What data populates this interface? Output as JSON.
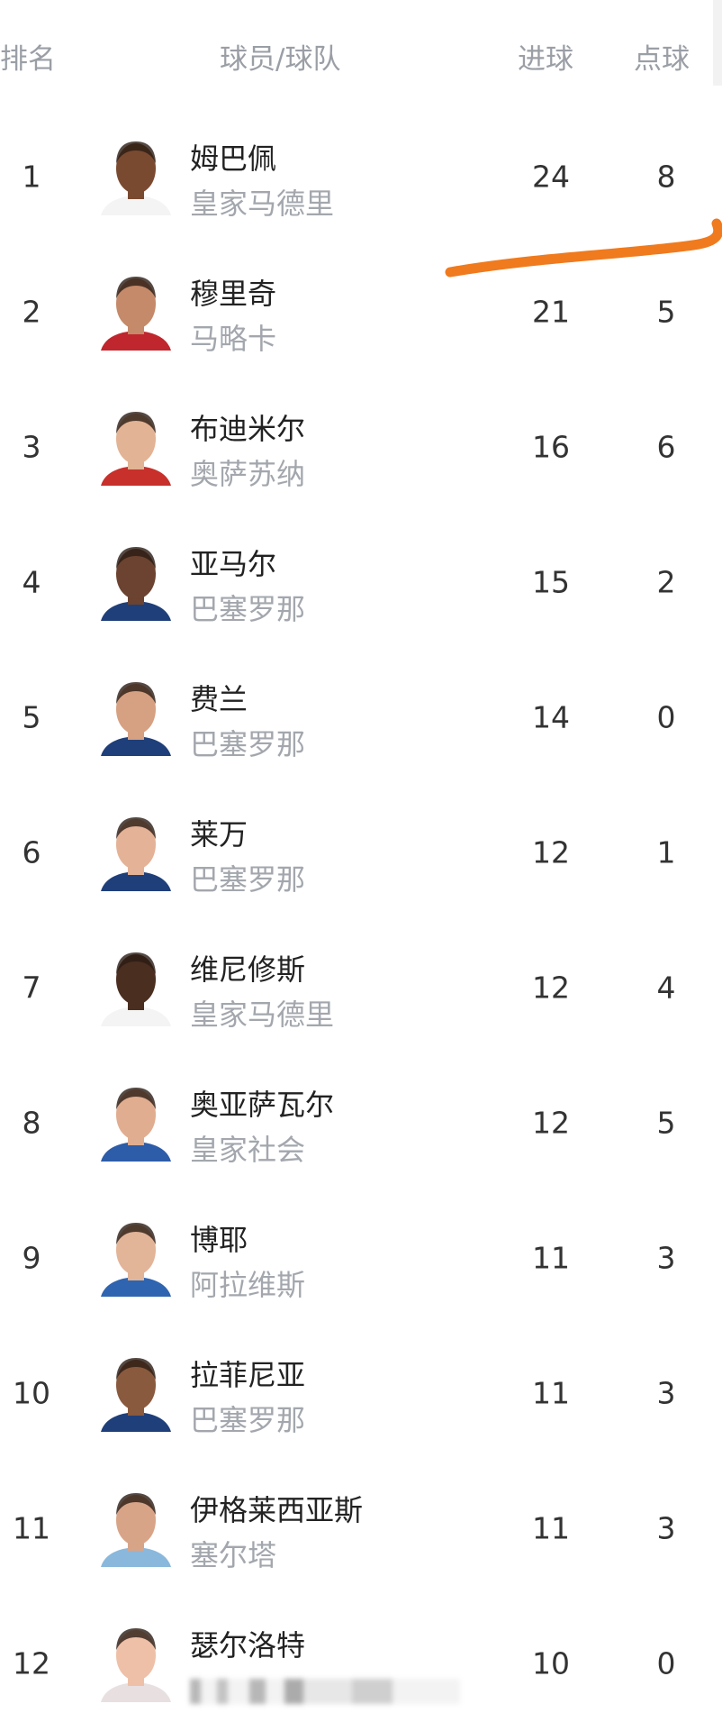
{
  "header": {
    "rank": "排名",
    "player_team": "球员/球队",
    "goals": "进球",
    "penalties": "点球"
  },
  "rows": [
    {
      "rank": "1",
      "name": "姆巴佩",
      "team": "皇家马德里",
      "goals": "24",
      "penalties": "8",
      "skin": "#7a4a30",
      "shirt": "#f4f4f4"
    },
    {
      "rank": "2",
      "name": "穆里奇",
      "team": "马略卡",
      "goals": "21",
      "penalties": "5",
      "skin": "#c48a6a",
      "shirt": "#c0262d"
    },
    {
      "rank": "3",
      "name": "布迪米尔",
      "team": "奥萨苏纳",
      "goals": "16",
      "penalties": "6",
      "skin": "#e2b394",
      "shirt": "#c8302b"
    },
    {
      "rank": "4",
      "name": "亚马尔",
      "team": "巴塞罗那",
      "goals": "15",
      "penalties": "2",
      "skin": "#6b4330",
      "shirt": "#1f3f7a"
    },
    {
      "rank": "5",
      "name": "费兰",
      "team": "巴塞罗那",
      "goals": "14",
      "penalties": "0",
      "skin": "#d6a082",
      "shirt": "#1f3f7a"
    },
    {
      "rank": "6",
      "name": "莱万",
      "team": "巴塞罗那",
      "goals": "12",
      "penalties": "1",
      "skin": "#e4b296",
      "shirt": "#1f3f7a"
    },
    {
      "rank": "7",
      "name": "维尼修斯",
      "team": "皇家马德里",
      "goals": "12",
      "penalties": "4",
      "skin": "#4a2e20",
      "shirt": "#f4f4f4"
    },
    {
      "rank": "8",
      "name": "奥亚萨瓦尔",
      "team": "皇家社会",
      "goals": "12",
      "penalties": "5",
      "skin": "#e0ad90",
      "shirt": "#2d5ca8"
    },
    {
      "rank": "9",
      "name": "博耶",
      "team": "阿拉维斯",
      "goals": "11",
      "penalties": "3",
      "skin": "#e2b498",
      "shirt": "#2f64b0"
    },
    {
      "rank": "10",
      "name": "拉菲尼亚",
      "team": "巴塞罗那",
      "goals": "11",
      "penalties": "3",
      "skin": "#8a5a3e",
      "shirt": "#1f3f7a"
    },
    {
      "rank": "11",
      "name": "伊格莱西亚斯",
      "team": "塞尔塔",
      "goals": "11",
      "penalties": "3",
      "skin": "#d8a488",
      "shirt": "#8ab8dc"
    },
    {
      "rank": "12",
      "name": "瑟尔洛特",
      "team": "",
      "goals": "10",
      "penalties": "0",
      "skin": "#eec0a8",
      "shirt": "#e8e0e0"
    }
  ],
  "annotation_color": "#f07a1e"
}
